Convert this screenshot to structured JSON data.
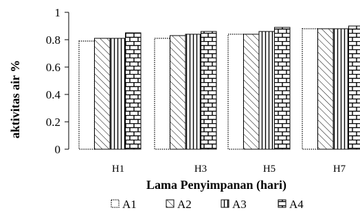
{
  "chart_data": {
    "type": "bar",
    "title": "",
    "xlabel": "Lama Penyimpanan (hari)",
    "ylabel": "aktivitas air %",
    "ylim": [
      0,
      1
    ],
    "yticks": [
      "0",
      "0.2",
      "0.4",
      "0.6",
      "0.8",
      "1"
    ],
    "categories": [
      "H1",
      "H3",
      "H5",
      "H7"
    ],
    "series": [
      {
        "name": "A1",
        "pattern": "dotted-outline",
        "values": [
          0.79,
          0.81,
          0.84,
          0.88
        ]
      },
      {
        "name": "A2",
        "pattern": "diagonal-hatch",
        "values": [
          0.81,
          0.83,
          0.84,
          0.88
        ]
      },
      {
        "name": "A3",
        "pattern": "vertical-lines",
        "values": [
          0.81,
          0.84,
          0.86,
          0.88
        ]
      },
      {
        "name": "A4",
        "pattern": "brick",
        "values": [
          0.85,
          0.86,
          0.89,
          0.9
        ]
      }
    ],
    "grid": false,
    "legend_position": "bottom"
  },
  "colors": {
    "ink": "#000000",
    "background": "#ffffff"
  }
}
